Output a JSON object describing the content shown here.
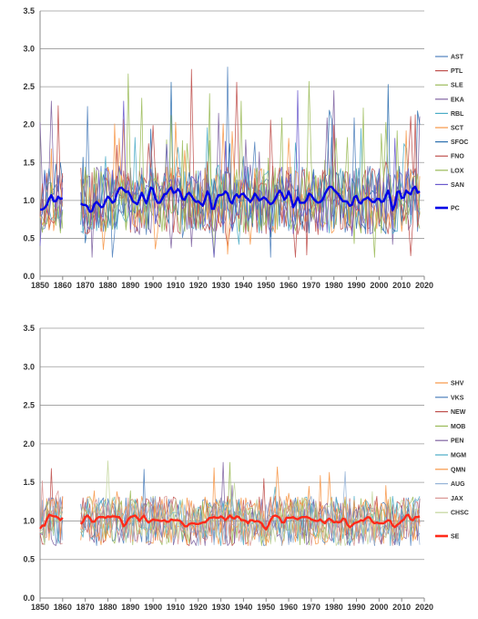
{
  "chart_data": [
    {
      "type": "line",
      "xlim": [
        1850,
        2020
      ],
      "ylim": [
        0,
        3.5
      ],
      "xticks": [
        1850,
        1860,
        1870,
        1880,
        1890,
        1900,
        1910,
        1920,
        1930,
        1940,
        1950,
        1960,
        1970,
        1980,
        1990,
        2000,
        2010,
        2020
      ],
      "yticks": [
        "0.0",
        "0.5",
        "1.0",
        "1.5",
        "2.0",
        "2.5",
        "3.0",
        "3.5"
      ],
      "grid": "horizontal",
      "legend_position": "right",
      "series": [
        {
          "name": "AST",
          "color": "#4F81BD",
          "width": 0.8,
          "seed": 11
        },
        {
          "name": "PTL",
          "color": "#C0504D",
          "width": 0.8,
          "seed": 23
        },
        {
          "name": "SLE",
          "color": "#9BBB59",
          "width": 0.8,
          "seed": 37
        },
        {
          "name": "EKA",
          "color": "#8064A2",
          "width": 0.8,
          "seed": 41
        },
        {
          "name": "RBL",
          "color": "#4BACC6",
          "width": 0.8,
          "seed": 53
        },
        {
          "name": "SCT",
          "color": "#F79646",
          "width": 0.8,
          "seed": 67
        },
        {
          "name": "SFOC",
          "color": "#2C6FAF",
          "width": 0.8,
          "seed": 71
        },
        {
          "name": "FNO",
          "color": "#C0504D",
          "width": 0.8,
          "seed": 83
        },
        {
          "name": "LOX",
          "color": "#9BBB59",
          "width": 0.8,
          "seed": 97
        },
        {
          "name": "SAN",
          "color": "#6A5ACD",
          "width": 0.8,
          "seed": 101
        },
        {
          "name": "PC",
          "color": "#0000E6",
          "width": 2.4,
          "composite": true
        }
      ]
    },
    {
      "type": "line",
      "xlim": [
        1850,
        2020
      ],
      "ylim": [
        0,
        3.5
      ],
      "xticks": [
        1850,
        1860,
        1870,
        1880,
        1890,
        1900,
        1910,
        1920,
        1930,
        1940,
        1950,
        1960,
        1970,
        1980,
        1990,
        2000,
        2010,
        2020
      ],
      "yticks": [
        "0.0",
        "0.5",
        "1.0",
        "1.5",
        "2.0",
        "2.5",
        "3.0",
        "3.5"
      ],
      "grid": "horizontal",
      "legend_position": "right",
      "series": [
        {
          "name": "SHV",
          "color": "#F79646",
          "width": 0.8,
          "seed": 13
        },
        {
          "name": "VKS",
          "color": "#4F81BD",
          "width": 0.8,
          "seed": 29
        },
        {
          "name": "NEW",
          "color": "#C0504D",
          "width": 0.8,
          "seed": 31
        },
        {
          "name": "MOB",
          "color": "#9BBB59",
          "width": 0.8,
          "seed": 43
        },
        {
          "name": "PEN",
          "color": "#8064A2",
          "width": 0.8,
          "seed": 59
        },
        {
          "name": "MGM",
          "color": "#4BACC6",
          "width": 0.8,
          "seed": 61
        },
        {
          "name": "QMN",
          "color": "#F79646",
          "width": 0.8,
          "seed": 73
        },
        {
          "name": "AUG",
          "color": "#95B3D7",
          "width": 0.8,
          "seed": 79
        },
        {
          "name": "JAX",
          "color": "#D99694",
          "width": 0.8,
          "seed": 89
        },
        {
          "name": "CHSC",
          "color": "#C3D69B",
          "width": 0.8,
          "seed": 103
        },
        {
          "name": "SE",
          "color": "#FF2A1A",
          "width": 2.4,
          "composite": true
        }
      ]
    }
  ]
}
